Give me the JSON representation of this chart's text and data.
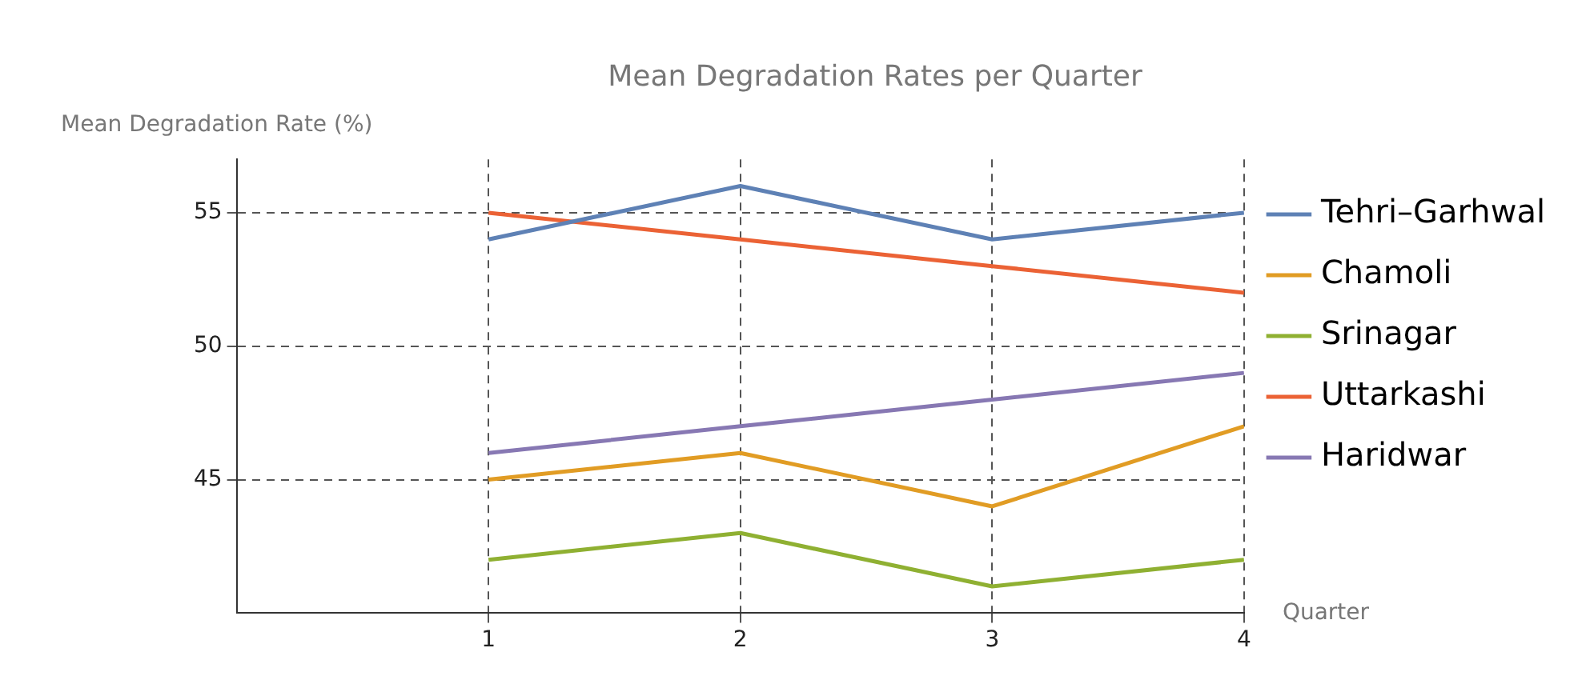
{
  "chart_data": {
    "type": "line",
    "title": "Mean Degradation Rates per Quarter",
    "xlabel": "Quarter",
    "ylabel": "Mean Degradation Rate (%)",
    "x": [
      1,
      2,
      3,
      4
    ],
    "series": [
      {
        "name": "Tehri–Garhwal",
        "color": "#5e81b5",
        "values": [
          54,
          56,
          54,
          55
        ]
      },
      {
        "name": "Chamoli",
        "color": "#e19c24",
        "values": [
          45,
          46,
          44,
          47
        ]
      },
      {
        "name": "Srinagar",
        "color": "#8fb032",
        "values": [
          42,
          43,
          41,
          42
        ]
      },
      {
        "name": "Uttarkashi",
        "color": "#eb6235",
        "values": [
          55,
          54,
          53,
          52
        ]
      },
      {
        "name": "Haridwar",
        "color": "#8778b3",
        "values": [
          46,
          47,
          48,
          49
        ]
      }
    ],
    "xlim": [
      0,
      4
    ],
    "xticks": [
      1,
      2,
      3,
      4
    ],
    "ylim": [
      40,
      57
    ],
    "yticks": [
      45,
      50,
      55
    ],
    "grid": true,
    "legend": "right",
    "marker": "none",
    "line_style": "solid"
  }
}
